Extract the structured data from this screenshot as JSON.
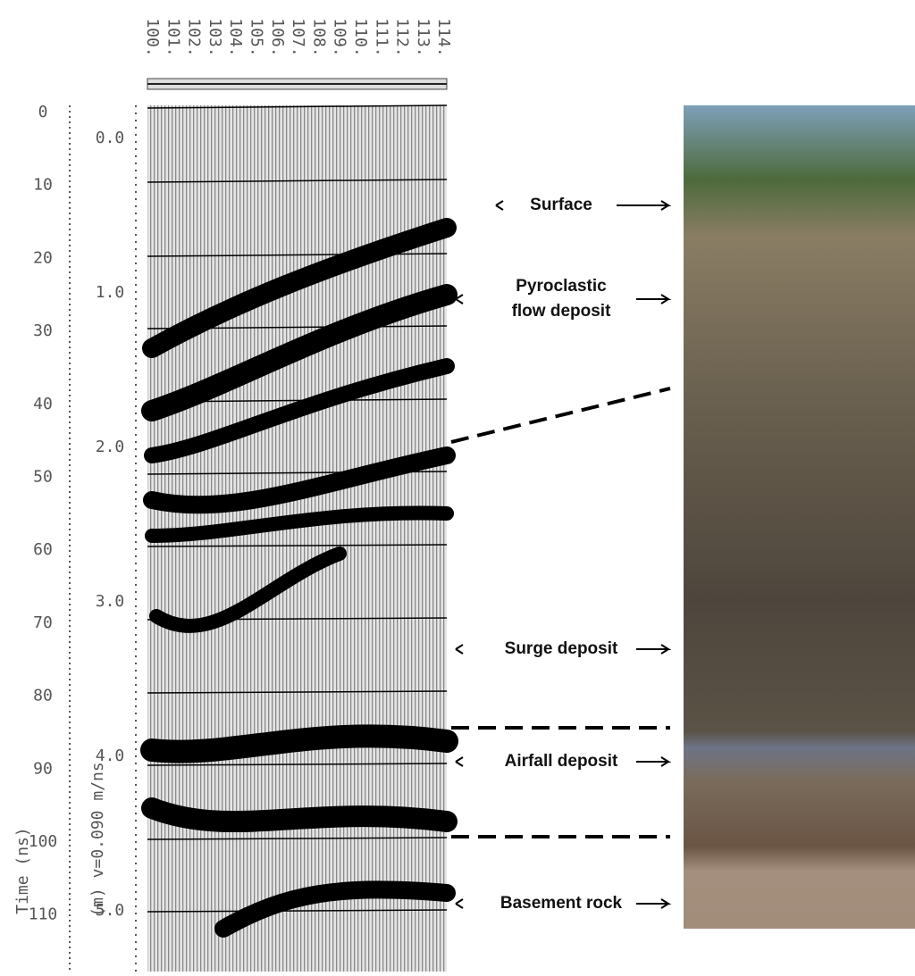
{
  "trace_labels": [
    "100.",
    "101.",
    "102.",
    "103.",
    "104.",
    "105.",
    "106.",
    "107.",
    "108.",
    "109.",
    "110.",
    "111.",
    "112.",
    "113.",
    "114."
  ],
  "time_axis": {
    "title": "Time (ns)",
    "ticks": [
      0,
      10,
      20,
      30,
      40,
      50,
      60,
      70,
      80,
      90,
      100,
      110
    ]
  },
  "depth_axis": {
    "title": "(m)  v=0.090 m/ns",
    "ticks": [
      "0.0",
      "1.0",
      "2.0",
      "3.0",
      "4.0",
      "5.0"
    ]
  },
  "layers": [
    {
      "label": [
        "Surface"
      ]
    },
    {
      "label": [
        "Pyroclastic",
        "flow deposit"
      ]
    },
    {
      "label": [
        "Surge deposit"
      ]
    },
    {
      "label": [
        "Airfall deposit"
      ]
    },
    {
      "label": [
        "Basement rock"
      ]
    }
  ]
}
